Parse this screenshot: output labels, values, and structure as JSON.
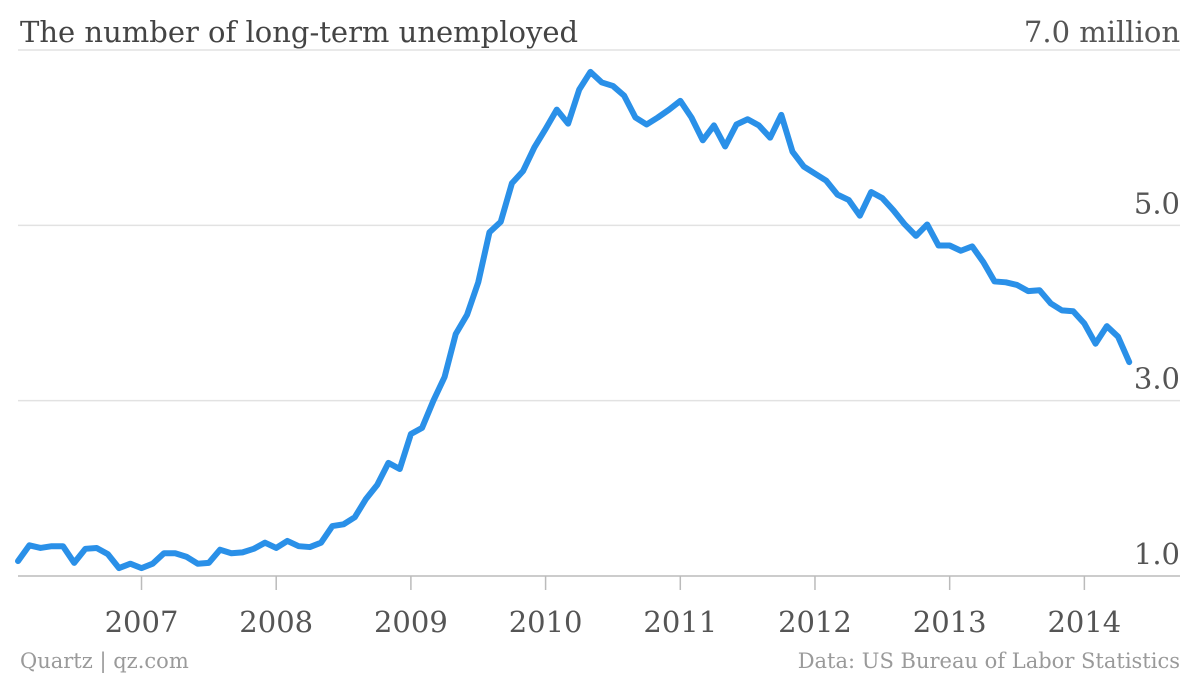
{
  "chart_data": {
    "type": "line",
    "title": "The number of long-term unemployed",
    "credit": "Quartz | qz.com",
    "source": "Data: US Bureau of Labor Statistics",
    "color": "#2a90e8",
    "x": [
      2006.083,
      2006.167,
      2006.25,
      2006.333,
      2006.417,
      2006.5,
      2006.583,
      2006.667,
      2006.75,
      2006.833,
      2006.917,
      2007.0,
      2007.083,
      2007.167,
      2007.25,
      2007.333,
      2007.417,
      2007.5,
      2007.583,
      2007.667,
      2007.75,
      2007.833,
      2007.917,
      2008.0,
      2008.083,
      2008.167,
      2008.25,
      2008.333,
      2008.417,
      2008.5,
      2008.583,
      2008.667,
      2008.75,
      2008.833,
      2008.917,
      2009.0,
      2009.083,
      2009.167,
      2009.25,
      2009.333,
      2009.417,
      2009.5,
      2009.583,
      2009.667,
      2009.75,
      2009.833,
      2009.917,
      2010.0,
      2010.083,
      2010.167,
      2010.25,
      2010.333,
      2010.417,
      2010.5,
      2010.583,
      2010.667,
      2010.75,
      2010.833,
      2010.917,
      2011.0,
      2011.083,
      2011.167,
      2011.25,
      2011.333,
      2011.417,
      2011.5,
      2011.583,
      2011.667,
      2011.75,
      2011.833,
      2011.917,
      2012.0,
      2012.083,
      2012.167,
      2012.25,
      2012.333,
      2012.417,
      2012.5,
      2012.583,
      2012.667,
      2012.75,
      2012.833,
      2012.917,
      2013.0,
      2013.083,
      2013.167,
      2013.25,
      2013.333,
      2013.417,
      2013.5,
      2013.583,
      2013.667,
      2013.75,
      2013.833,
      2013.917,
      2014.0,
      2014.083,
      2014.167,
      2014.25,
      2014.333
    ],
    "values": [
      1.17,
      1.35,
      1.32,
      1.34,
      1.34,
      1.15,
      1.31,
      1.32,
      1.25,
      1.09,
      1.14,
      1.09,
      1.14,
      1.26,
      1.26,
      1.22,
      1.14,
      1.15,
      1.3,
      1.26,
      1.27,
      1.31,
      1.38,
      1.32,
      1.4,
      1.34,
      1.33,
      1.38,
      1.57,
      1.59,
      1.67,
      1.88,
      2.04,
      2.29,
      2.22,
      2.62,
      2.69,
      3.0,
      3.27,
      3.76,
      3.98,
      4.35,
      4.92,
      5.04,
      5.48,
      5.62,
      5.89,
      6.1,
      6.32,
      6.16,
      6.55,
      6.75,
      6.63,
      6.59,
      6.48,
      6.23,
      6.15,
      6.23,
      6.32,
      6.42,
      6.23,
      5.97,
      6.14,
      5.9,
      6.15,
      6.21,
      6.14,
      6.0,
      6.26,
      5.84,
      5.67,
      5.59,
      5.51,
      5.35,
      5.29,
      5.11,
      5.38,
      5.31,
      5.17,
      5.01,
      4.88,
      5.01,
      4.77,
      4.77,
      4.71,
      4.76,
      4.58,
      4.36,
      4.35,
      4.32,
      4.25,
      4.26,
      4.11,
      4.03,
      4.02,
      3.88,
      3.65,
      3.85,
      3.73,
      3.44
    ],
    "xlim": [
      2006.083,
      2014.71
    ],
    "xticks": [
      2007,
      2008,
      2009,
      2010,
      2011,
      2012,
      2013,
      2014
    ],
    "ylim": [
      1,
      7
    ],
    "yticks": [
      {
        "value": 1,
        "label": "1.0"
      },
      {
        "value": 3,
        "label": "3.0"
      },
      {
        "value": 5,
        "label": "5.0"
      },
      {
        "value": 7,
        "label": "7.0 million"
      }
    ],
    "grid": true
  }
}
